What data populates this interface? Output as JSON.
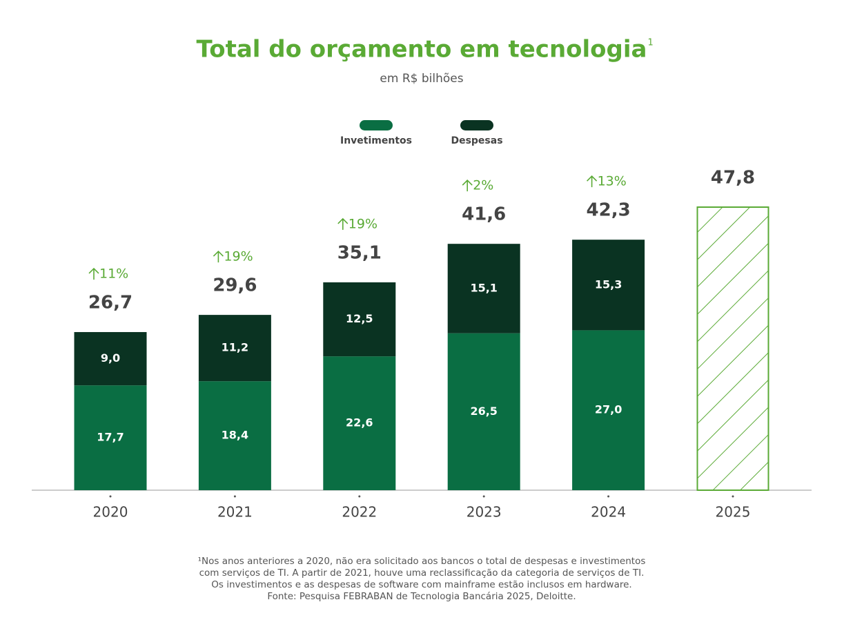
{
  "chart_data": {
    "type": "stacked_bar",
    "title": "Total do orçamento em tecnologia",
    "title_note": "1",
    "subtitle": "em R$ bilhões",
    "categories": [
      "2020",
      "2021",
      "2022",
      "2023",
      "2024",
      "2025"
    ],
    "series": [
      {
        "name": "Invetimentos",
        "color": "#0a6e43",
        "values": [
          17.7,
          18.4,
          22.6,
          26.5,
          27.0,
          null
        ],
        "value_labels": [
          "17,7",
          "18,4",
          "22,6",
          "26,5",
          "27,0",
          null
        ]
      },
      {
        "name": "Despesas",
        "color": "#0a3322",
        "values": [
          9.0,
          11.2,
          12.5,
          15.1,
          15.3,
          null
        ],
        "value_labels": [
          "9,0",
          "11,2",
          "12,5",
          "15,1",
          "15,3",
          null
        ]
      }
    ],
    "totals": {
      "values": [
        26.7,
        29.6,
        35.1,
        41.6,
        42.3,
        47.8
      ],
      "value_labels": [
        "26,7",
        "29,6",
        "35,1",
        "41,6",
        "42,3",
        "47,8"
      ]
    },
    "growth": {
      "color": "#5aaa35",
      "values": [
        11,
        19,
        19,
        2,
        13,
        null
      ],
      "value_labels": [
        "11%",
        "19%",
        "19%",
        "2%",
        "13%",
        null
      ]
    },
    "projection_color": "#5aaa35",
    "footnote": [
      "¹Nos anos anteriores a 2020, não era solicitado aos bancos o total de despesas e investimentos",
      "com serviços de TI. A partir de 2021, houve uma reclassificação da categoria de serviços de TI.",
      "Os investimentos e as despesas de software com mainframe estão inclusos em hardware.",
      "Fonte: Pesquisa FEBRABAN de Tecnologia Bancária 2025, Deloitte."
    ]
  }
}
